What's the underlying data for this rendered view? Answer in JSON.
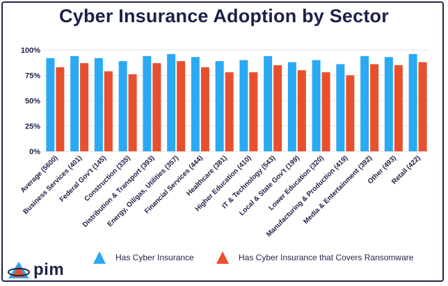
{
  "colors": {
    "insurance": "#2aa9f4",
    "ransomware": "#e8502d",
    "text": "#1c2147",
    "grid": "#e3e3e3"
  },
  "chart_data": {
    "type": "bar",
    "title": "Cyber Insurance Adoption by Sector",
    "categories": [
      "Average (5600)",
      "Business Services (401)",
      "Federal Gov't (145)",
      "Construction (335)",
      "Distribution & Transport (393)",
      "Energy, Oil/gas, Utilities (357)",
      "Financial Services (444)",
      "Healthcare (381)",
      "Higher Education (410)",
      "IT & Technology (543)",
      "Local & State Gov't (199)",
      "Lower Education (320)",
      "Manufacturing & Production (419)",
      "Media & Entertainment (392)",
      "Other (493)",
      "Retail (422)"
    ],
    "series": [
      {
        "name": "Has Cyber Insurance",
        "values": [
          92,
          94,
          92,
          89,
          94,
          96,
          93,
          89,
          90,
          94,
          88,
          90,
          86,
          94,
          93,
          96
        ]
      },
      {
        "name": "Has Cyber Insurance that Covers Ransomware",
        "values": [
          83,
          87,
          79,
          76,
          87,
          89,
          83,
          78,
          78,
          85,
          80,
          78,
          75,
          86,
          85,
          88
        ]
      }
    ],
    "ylim": [
      0,
      100
    ],
    "yticks": [
      "0%",
      "25%",
      "50%",
      "75%",
      "100%"
    ],
    "grid": true,
    "legend_position": "bottom"
  },
  "logo": {
    "text": "pim"
  }
}
